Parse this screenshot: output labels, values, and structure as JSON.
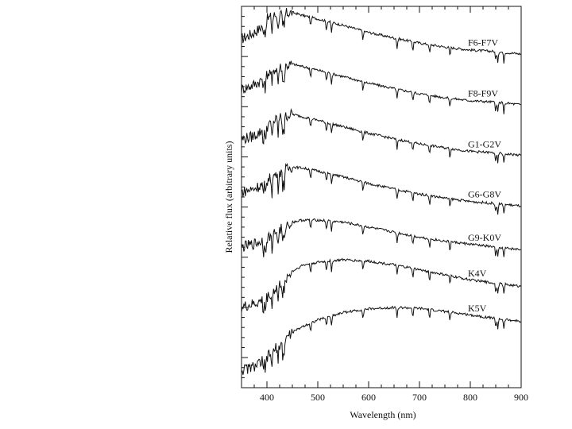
{
  "chart_data": {
    "type": "line",
    "title": "",
    "xlabel": "Wavelength (nm)",
    "ylabel": "Relative flux (arbitrary units)",
    "xlim": [
      350,
      900
    ],
    "x_ticks": [
      400,
      500,
      600,
      700,
      800,
      900
    ],
    "x_tick_labels": [
      "400",
      "500",
      "600",
      "700",
      "800",
      "900"
    ],
    "ylim": [
      0,
      7.6
    ],
    "grid": false,
    "legend": "none",
    "series": [
      {
        "name": "F6-F7V",
        "label": "F6-F7V",
        "x": [
          350,
          370,
          385,
          400,
          415,
          430,
          450,
          470,
          500,
          550,
          600,
          650,
          700,
          750,
          800,
          850,
          900
        ],
        "y": [
          6.95,
          7.05,
          7.15,
          7.35,
          7.42,
          7.45,
          7.48,
          7.42,
          7.35,
          7.22,
          7.08,
          6.97,
          6.87,
          6.79,
          6.73,
          6.7,
          6.65
        ]
      },
      {
        "name": "F8-F9V",
        "label": "F8-F9V",
        "x": [
          350,
          370,
          385,
          400,
          415,
          430,
          450,
          470,
          500,
          550,
          600,
          650,
          700,
          750,
          800,
          850,
          900
        ],
        "y": [
          5.95,
          6.02,
          6.1,
          6.25,
          6.35,
          6.4,
          6.45,
          6.4,
          6.33,
          6.2,
          6.07,
          5.96,
          5.86,
          5.78,
          5.72,
          5.69,
          5.64
        ]
      },
      {
        "name": "G1-G2V",
        "label": "G1-G2V",
        "x": [
          350,
          370,
          385,
          400,
          415,
          430,
          450,
          470,
          500,
          550,
          600,
          650,
          700,
          750,
          800,
          850,
          900
        ],
        "y": [
          4.95,
          5.0,
          5.08,
          5.2,
          5.32,
          5.4,
          5.45,
          5.4,
          5.33,
          5.2,
          5.07,
          4.96,
          4.86,
          4.78,
          4.71,
          4.68,
          4.63
        ]
      },
      {
        "name": "G6-G8V",
        "label": "G6-G8V",
        "x": [
          350,
          370,
          385,
          400,
          415,
          430,
          450,
          470,
          500,
          550,
          600,
          650,
          700,
          750,
          800,
          850,
          900
        ],
        "y": [
          3.9,
          3.95,
          4.02,
          4.12,
          4.24,
          4.32,
          4.4,
          4.38,
          4.32,
          4.2,
          4.07,
          3.96,
          3.86,
          3.78,
          3.71,
          3.67,
          3.62
        ]
      },
      {
        "name": "G9-K0V",
        "label": "G9-K0V",
        "x": [
          350,
          370,
          385,
          400,
          415,
          430,
          450,
          470,
          500,
          550,
          600,
          650,
          700,
          750,
          800,
          850,
          900
        ],
        "y": [
          2.8,
          2.85,
          2.9,
          2.98,
          3.08,
          3.18,
          3.3,
          3.34,
          3.34,
          3.3,
          3.2,
          3.1,
          3.0,
          2.92,
          2.86,
          2.8,
          2.75
        ]
      },
      {
        "name": "K4V",
        "label": "K4V",
        "x": [
          350,
          370,
          385,
          400,
          415,
          430,
          450,
          470,
          500,
          550,
          600,
          650,
          700,
          750,
          800,
          850,
          900
        ],
        "y": [
          1.6,
          1.65,
          1.7,
          1.8,
          1.95,
          2.1,
          2.32,
          2.44,
          2.5,
          2.55,
          2.52,
          2.45,
          2.35,
          2.25,
          2.15,
          2.08,
          2.02
        ]
      },
      {
        "name": "K5V",
        "label": "K5V",
        "x": [
          350,
          370,
          385,
          400,
          415,
          430,
          450,
          470,
          500,
          550,
          600,
          650,
          700,
          750,
          800,
          850,
          900
        ],
        "y": [
          0.35,
          0.4,
          0.48,
          0.6,
          0.75,
          0.92,
          1.1,
          1.22,
          1.35,
          1.5,
          1.57,
          1.6,
          1.58,
          1.52,
          1.45,
          1.38,
          1.32
        ]
      }
    ],
    "line_color": "#111111"
  }
}
